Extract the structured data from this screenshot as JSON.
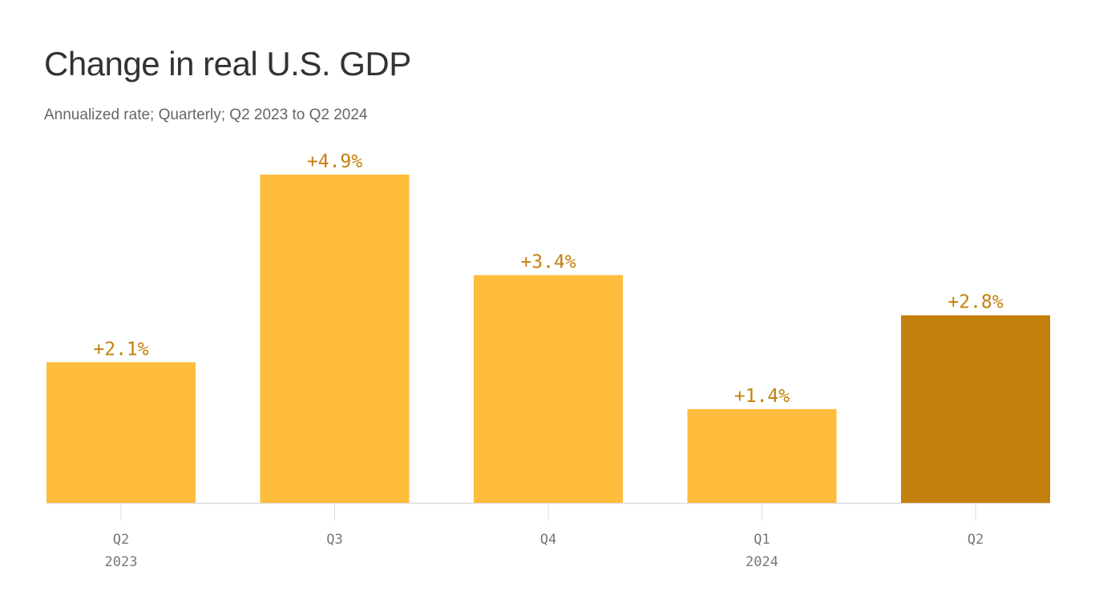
{
  "title": "Change in real U.S. GDP",
  "subtitle": "Annualized rate; Quarterly; Q2 2023 to Q2 2024",
  "chart_data": {
    "type": "bar",
    "title": "Change in real U.S. GDP",
    "subtitle": "Annualized rate; Quarterly; Q2 2023 to Q2 2024",
    "categories": [
      "Q2 2023",
      "Q3",
      "Q4",
      "Q1 2024",
      "Q2"
    ],
    "tick_labels": [
      [
        "Q2",
        "2023"
      ],
      [
        "Q3"
      ],
      [
        "Q4"
      ],
      [
        "Q1",
        "2024"
      ],
      [
        "Q2"
      ]
    ],
    "values": [
      2.1,
      4.9,
      3.4,
      1.4,
      2.8
    ],
    "data_labels": [
      "+2.1%",
      "+4.9%",
      "+3.4%",
      "+1.4%",
      "+2.8%"
    ],
    "highlighted_index": 4,
    "ylim": [
      0,
      5
    ],
    "grid": false,
    "colors": {
      "bar": "#FFBC3D",
      "highlight": "#C4800C",
      "label": "#C4800C",
      "axis": "#DDDDDD"
    }
  }
}
